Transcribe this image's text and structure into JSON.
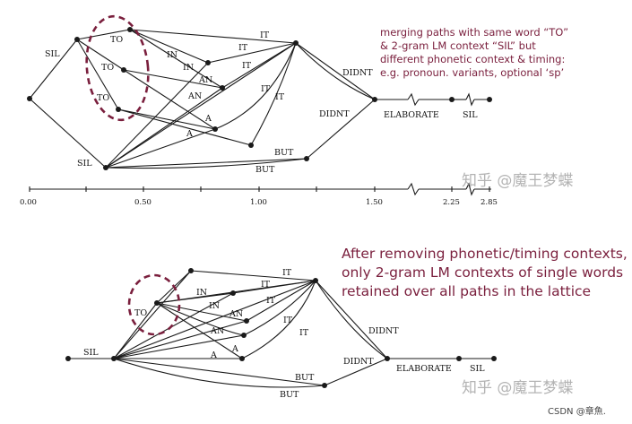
{
  "upper_lattice": {
    "labels": [
      "SIL",
      "TO",
      "TO",
      "TO",
      "IN",
      "IN",
      "AN",
      "AN",
      "A",
      "A",
      "IT",
      "IT",
      "IT",
      "IT",
      "IT",
      "SIL",
      "BUT",
      "BUT",
      "DIDNT",
      "DIDNT",
      "ELABORATE",
      "SIL"
    ],
    "annotation": [
      "merging paths with same word “TO”",
      "& 2-gram LM context “SIL” but",
      "different phonetic context & timing:",
      "e.g. pronoun. variants, optional ‘sp’"
    ]
  },
  "time_axis": {
    "ticks": [
      "0.00",
      "0.50",
      "1.00",
      "1.50",
      "2.25",
      "2.85"
    ]
  },
  "lower_lattice": {
    "labels": [
      "SIL",
      "TO",
      "IN",
      "IN",
      "IT",
      "IT",
      "IT",
      "IT",
      "IT",
      "AN",
      "AN",
      "A",
      "A",
      "BUT",
      "BUT",
      "DIDNT",
      "DIDNT",
      "ELABORATE",
      "SIL"
    ],
    "annotation": [
      "After removing phonetic/timing contexts,",
      "only 2-gram LM contexts of single words",
      "retained over all paths in the lattice"
    ]
  },
  "watermark": "知乎 @魔王梦蝶",
  "credit": "CSDN @章魚."
}
